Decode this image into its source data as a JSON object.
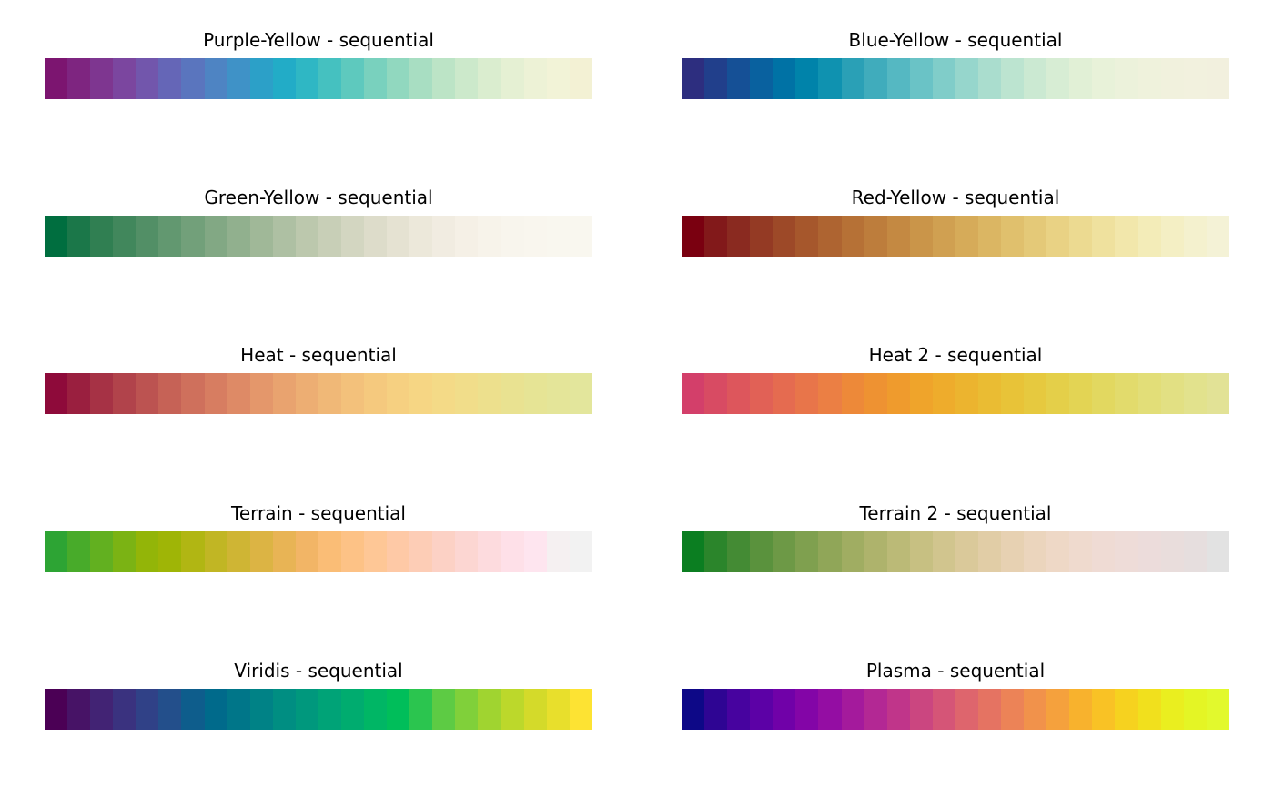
{
  "chart_data": [
    {
      "type": "colorbar",
      "title": "Purple-Yellow - sequential",
      "colors": [
        "#7C1570",
        "#7E2580",
        "#7E3690",
        "#7B469F",
        "#7256AC",
        "#6566B7",
        "#5A75BE",
        "#4E84C3",
        "#3F92C7",
        "#2CA0C8",
        "#22ACC7",
        "#2FB7C4",
        "#45C1C0",
        "#5EC9BE",
        "#79D1BE",
        "#91D8BF",
        "#A8DEC2",
        "#BCE4C6",
        "#CCE9CB",
        "#DAEDCF",
        "#E5F0D3",
        "#EDF2D6",
        "#F2F3D7",
        "#F3F1D4"
      ]
    },
    {
      "type": "colorbar",
      "title": "Blue-Yellow - sequential",
      "colors": [
        "#2D2E7F",
        "#213F8B",
        "#155096",
        "#09619F",
        "#0072A5",
        "#0083AA",
        "#0F92B0",
        "#2AA0B6",
        "#40ACBC",
        "#55B8C2",
        "#6AC3C6",
        "#80CDC9",
        "#96D6CC",
        "#AADDCE",
        "#BCE4D0",
        "#CBE9D2",
        "#D7EDD4",
        "#E1F0D6",
        "#E8F2D9",
        "#ECF2DB",
        "#EFF2DC",
        "#F1F1DD",
        "#F2F1DE",
        "#F2F0DE"
      ]
    },
    {
      "type": "colorbar",
      "title": "Green-Yellow - sequential",
      "colors": [
        "#006E3F",
        "#1B7749",
        "#307F52",
        "#41875C",
        "#528F66",
        "#629870",
        "#72A07A",
        "#82A884",
        "#91B08E",
        "#A0B898",
        "#AEC0A3",
        "#BCC8AD",
        "#C8CFB7",
        "#D3D6C1",
        "#DDDCCA",
        "#E5E2D2",
        "#ECE8DA",
        "#F1ECE1",
        "#F5F0E6",
        "#F7F3EA",
        "#F8F5ED",
        "#F9F6EE",
        "#F9F7EF",
        "#F9F7EF"
      ]
    },
    {
      "type": "colorbar",
      "title": "Red-Yellow - sequential",
      "colors": [
        "#7A0010",
        "#82191A",
        "#8A2A20",
        "#943A24",
        "#9D4928",
        "#A6572C",
        "#AE6431",
        "#B67136",
        "#BD7D3C",
        "#C48942",
        "#CA9549",
        "#D0A051",
        "#D6AB59",
        "#DBB663",
        "#E0C06D",
        "#E4C978",
        "#E9D284",
        "#ECDA91",
        "#EFE19E",
        "#F2E7AB",
        "#F3ECB8",
        "#F4EFC4",
        "#F4F1CE",
        "#F4F2D6"
      ]
    },
    {
      "type": "colorbar",
      "title": "Heat - sequential",
      "colors": [
        "#8E0A3A",
        "#9A1F3F",
        "#A63245",
        "#B1434B",
        "#BC5351",
        "#C66256",
        "#CF705C",
        "#D77D61",
        "#DE8A66",
        "#E4976B",
        "#E9A36F",
        "#EDAE73",
        "#F0B877",
        "#F3C17B",
        "#F5C97E",
        "#F6D081",
        "#F6D684",
        "#F4DA87",
        "#F1DD8A",
        "#EDE08D",
        "#E9E291",
        "#E6E495",
        "#E4E599",
        "#E3E69C"
      ]
    },
    {
      "type": "colorbar",
      "title": "Heat 2 - sequential",
      "colors": [
        "#D33F6A",
        "#D84B63",
        "#DD565C",
        "#E16156",
        "#E56B50",
        "#E8754A",
        "#EB7F44",
        "#ED8939",
        "#EE9232",
        "#EF9B2D",
        "#EFA42B",
        "#EEAC2C",
        "#ECB42F",
        "#EABC33",
        "#E8C338",
        "#E6C93F",
        "#E4CF49",
        "#E3D454",
        "#E2D860",
        "#E2DB6C",
        "#E2DE78",
        "#E2E083",
        "#E2E28D",
        "#E2E296"
      ]
    },
    {
      "type": "colorbar",
      "title": "Terrain - sequential",
      "colors": [
        "#2DA434",
        "#48AB2A",
        "#62B020",
        "#7BB314",
        "#93B508",
        "#9FB506",
        "#B1B613",
        "#C1B624",
        "#CFB534",
        "#DCB444",
        "#E8B455",
        "#F2B566",
        "#FABD76",
        "#FDC286",
        "#FEC796",
        "#FEC9A6",
        "#FDCDB6",
        "#FCD1C5",
        "#FCD6D2",
        "#FDDBDE",
        "#FEE0E8",
        "#FEE5EF",
        "#F5F0F1",
        "#F2F2F2"
      ]
    },
    {
      "type": "colorbar",
      "title": "Terrain 2 - sequential",
      "colors": [
        "#0B7E21",
        "#2B852B",
        "#448B34",
        "#5A923D",
        "#6D9946",
        "#7FA04F",
        "#90A658",
        "#A0AD62",
        "#AEB36C",
        "#BBBA77",
        "#C7C082",
        "#D1C58E",
        "#DAC99A",
        "#E1CDA6",
        "#E7D1B2",
        "#EBD5BD",
        "#EED8C6",
        "#EFDACE",
        "#EFDBD4",
        "#EEDCD8",
        "#ECDCDB",
        "#E9DDDC",
        "#E6DEDE",
        "#E2E2E2"
      ]
    },
    {
      "type": "colorbar",
      "title": "Viridis - sequential",
      "colors": [
        "#4B0055",
        "#471366",
        "#422374",
        "#3A327F",
        "#304187",
        "#234F8B",
        "#0E5D8C",
        "#006A8B",
        "#007689",
        "#008286",
        "#008E82",
        "#00987D",
        "#00A377",
        "#00AC6F",
        "#00B665",
        "#00BE5A",
        "#2BC54F",
        "#5DCB44",
        "#80D03A",
        "#A0D430",
        "#BCD82B",
        "#D4DA2A",
        "#E8DF2C",
        "#FDE333"
      ]
    },
    {
      "type": "colorbar",
      "title": "Plasma - sequential",
      "colors": [
        "#0D0887",
        "#2E0593",
        "#47039F",
        "#5C01A6",
        "#7001A8",
        "#8305A7",
        "#940DA3",
        "#A41A9C",
        "#B32894",
        "#C0358A",
        "#CB4680",
        "#D55577",
        "#DE656D",
        "#E57362",
        "#EC8357",
        "#F1924B",
        "#F5A13D",
        "#F8B22D",
        "#F9C225",
        "#F6D21F",
        "#F1E01D",
        "#EAEE1F",
        "#E4F525",
        "#E2F92D"
      ]
    }
  ]
}
